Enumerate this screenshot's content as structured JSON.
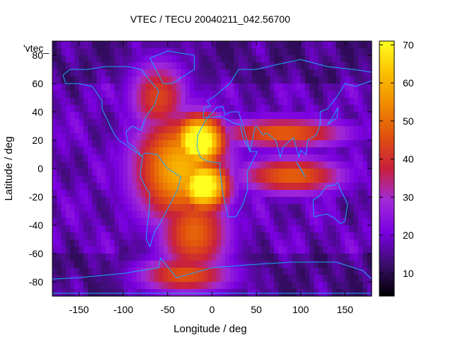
{
  "chart_data": {
    "type": "heatmap",
    "title": "VTEC / TECU 20040211_042.56700",
    "key_label": "'vtec_",
    "xlabel": "Longitude / deg",
    "ylabel": "Latitude / deg",
    "xlim": [
      -180,
      180
    ],
    "ylim": [
      -90,
      90
    ],
    "xticks": [
      -150,
      -100,
      -50,
      0,
      50,
      100,
      150
    ],
    "yticks": [
      -80,
      -60,
      -40,
      -20,
      0,
      20,
      40,
      60,
      80
    ],
    "colorbar": {
      "range": [
        4,
        71
      ],
      "ticks": [
        10,
        20,
        30,
        40,
        50,
        60,
        70
      ],
      "palette": [
        "#000000",
        "#3b0e6e",
        "#7a00e0",
        "#a12ad8",
        "#c8203c",
        "#e0500f",
        "#f08a00",
        "#fbc000",
        "#ffff20"
      ]
    },
    "features": [
      {
        "lon": -15,
        "lat": 19,
        "vtec": 71,
        "sigma_lon": 22,
        "sigma_lat": 14
      },
      {
        "lon": -10,
        "lat": -12,
        "vtec": 68,
        "sigma_lon": 22,
        "sigma_lat": 14
      },
      {
        "lon": -35,
        "lat": 0,
        "vtec": 50,
        "sigma_lon": 40,
        "sigma_lat": 30
      },
      {
        "lon": -20,
        "lat": -45,
        "vtec": 38,
        "sigma_lon": 30,
        "sigma_lat": 25
      },
      {
        "lon": 80,
        "lat": 25,
        "vtec": 38,
        "sigma_lon": 55,
        "sigma_lat": 8
      },
      {
        "lon": 90,
        "lat": -5,
        "vtec": 38,
        "sigma_lon": 45,
        "sigma_lat": 10
      },
      {
        "lon": -60,
        "lat": 50,
        "vtec": 33,
        "sigma_lon": 25,
        "sigma_lat": 20
      },
      {
        "lon": -30,
        "lat": -75,
        "vtec": 36,
        "sigma_lon": 40,
        "sigma_lat": 10
      }
    ],
    "background_vtec": 18
  }
}
